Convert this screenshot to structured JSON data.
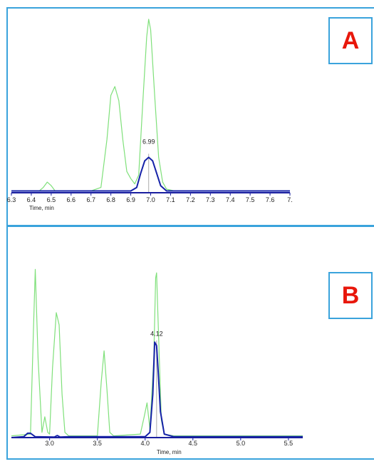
{
  "colors": {
    "border": "#3aa3dc",
    "badge_text": "#e8170b",
    "trace_green": "#7fe07a",
    "trace_blue": "#1522a8",
    "axis": "#1a1fa0"
  },
  "chart_data": [
    {
      "type": "line",
      "panel_label": "A",
      "xlabel": "Time, min",
      "xlim": [
        6.3,
        7.7
      ],
      "ylim": [
        0,
        100
      ],
      "x_ticks": [
        "6.3",
        "6.4",
        "6.5",
        "6.6",
        "6.7",
        "6.8",
        "6.9",
        "7.0",
        "7.1",
        "7.2",
        "7.3",
        "7.4",
        "7.5",
        "7.6",
        "7."
      ],
      "peak_annotation": {
        "label": "6.99",
        "x": 6.99
      },
      "series": [
        {
          "color": "#7fe07a",
          "x": [
            6.3,
            6.44,
            6.46,
            6.48,
            6.5,
            6.52,
            6.54,
            6.7,
            6.75,
            6.78,
            6.8,
            6.82,
            6.84,
            6.86,
            6.88,
            6.9,
            6.92,
            6.94,
            6.96,
            6.98,
            6.99,
            7.0,
            7.02,
            7.04,
            7.06,
            7.08,
            7.12,
            7.3,
            7.5,
            7.7
          ],
          "y": [
            1,
            1,
            3,
            6,
            4,
            1,
            1,
            1,
            3,
            30,
            55,
            60,
            52,
            30,
            12,
            8,
            5,
            10,
            50,
            88,
            98,
            92,
            55,
            20,
            6,
            2,
            1,
            1,
            1,
            1
          ]
        },
        {
          "color": "#1522a8",
          "x": [
            6.3,
            6.9,
            6.93,
            6.95,
            6.97,
            6.99,
            7.01,
            7.03,
            7.05,
            7.08,
            7.7
          ],
          "y": [
            1,
            1,
            3,
            11,
            18,
            20,
            18,
            11,
            4,
            1,
            1
          ]
        }
      ]
    },
    {
      "type": "line",
      "panel_label": "B",
      "xlabel": "Time, min",
      "xlim": [
        2.6,
        5.65
      ],
      "ylim": [
        0,
        100
      ],
      "x_ticks": [
        "3.0",
        "3.5",
        "4.0",
        "4.5",
        "5.0",
        "5.5"
      ],
      "peak_annotation": {
        "label": "4.12",
        "x": 4.12
      },
      "series": [
        {
          "color": "#7fe07a",
          "x": [
            2.6,
            2.8,
            2.83,
            2.85,
            2.88,
            2.92,
            2.95,
            2.98,
            3.0,
            3.03,
            3.07,
            3.1,
            3.13,
            3.16,
            3.2,
            3.5,
            3.54,
            3.57,
            3.6,
            3.63,
            3.67,
            3.95,
            3.99,
            4.02,
            4.05,
            4.09,
            4.11,
            4.12,
            4.14,
            4.17,
            4.2,
            4.3,
            5.65
          ],
          "y": [
            1,
            2,
            60,
            97,
            45,
            3,
            12,
            3,
            2,
            40,
            72,
            65,
            25,
            3,
            1,
            1,
            32,
            50,
            28,
            3,
            1,
            2,
            12,
            20,
            5,
            45,
            92,
            95,
            60,
            10,
            2,
            1,
            1
          ]
        },
        {
          "color": "#1522a8",
          "x": [
            2.6,
            2.73,
            2.77,
            2.8,
            2.85,
            3.05,
            3.08,
            3.11,
            3.2,
            4.0,
            4.05,
            4.08,
            4.1,
            4.12,
            4.14,
            4.16,
            4.2,
            4.3,
            5.65
          ],
          "y": [
            0,
            0.5,
            2.5,
            2.5,
            0.5,
            0.3,
            1.2,
            0.3,
            0.5,
            0.5,
            3,
            25,
            55,
            53,
            35,
            15,
            2,
            0.5,
            0.5
          ]
        }
      ]
    }
  ]
}
